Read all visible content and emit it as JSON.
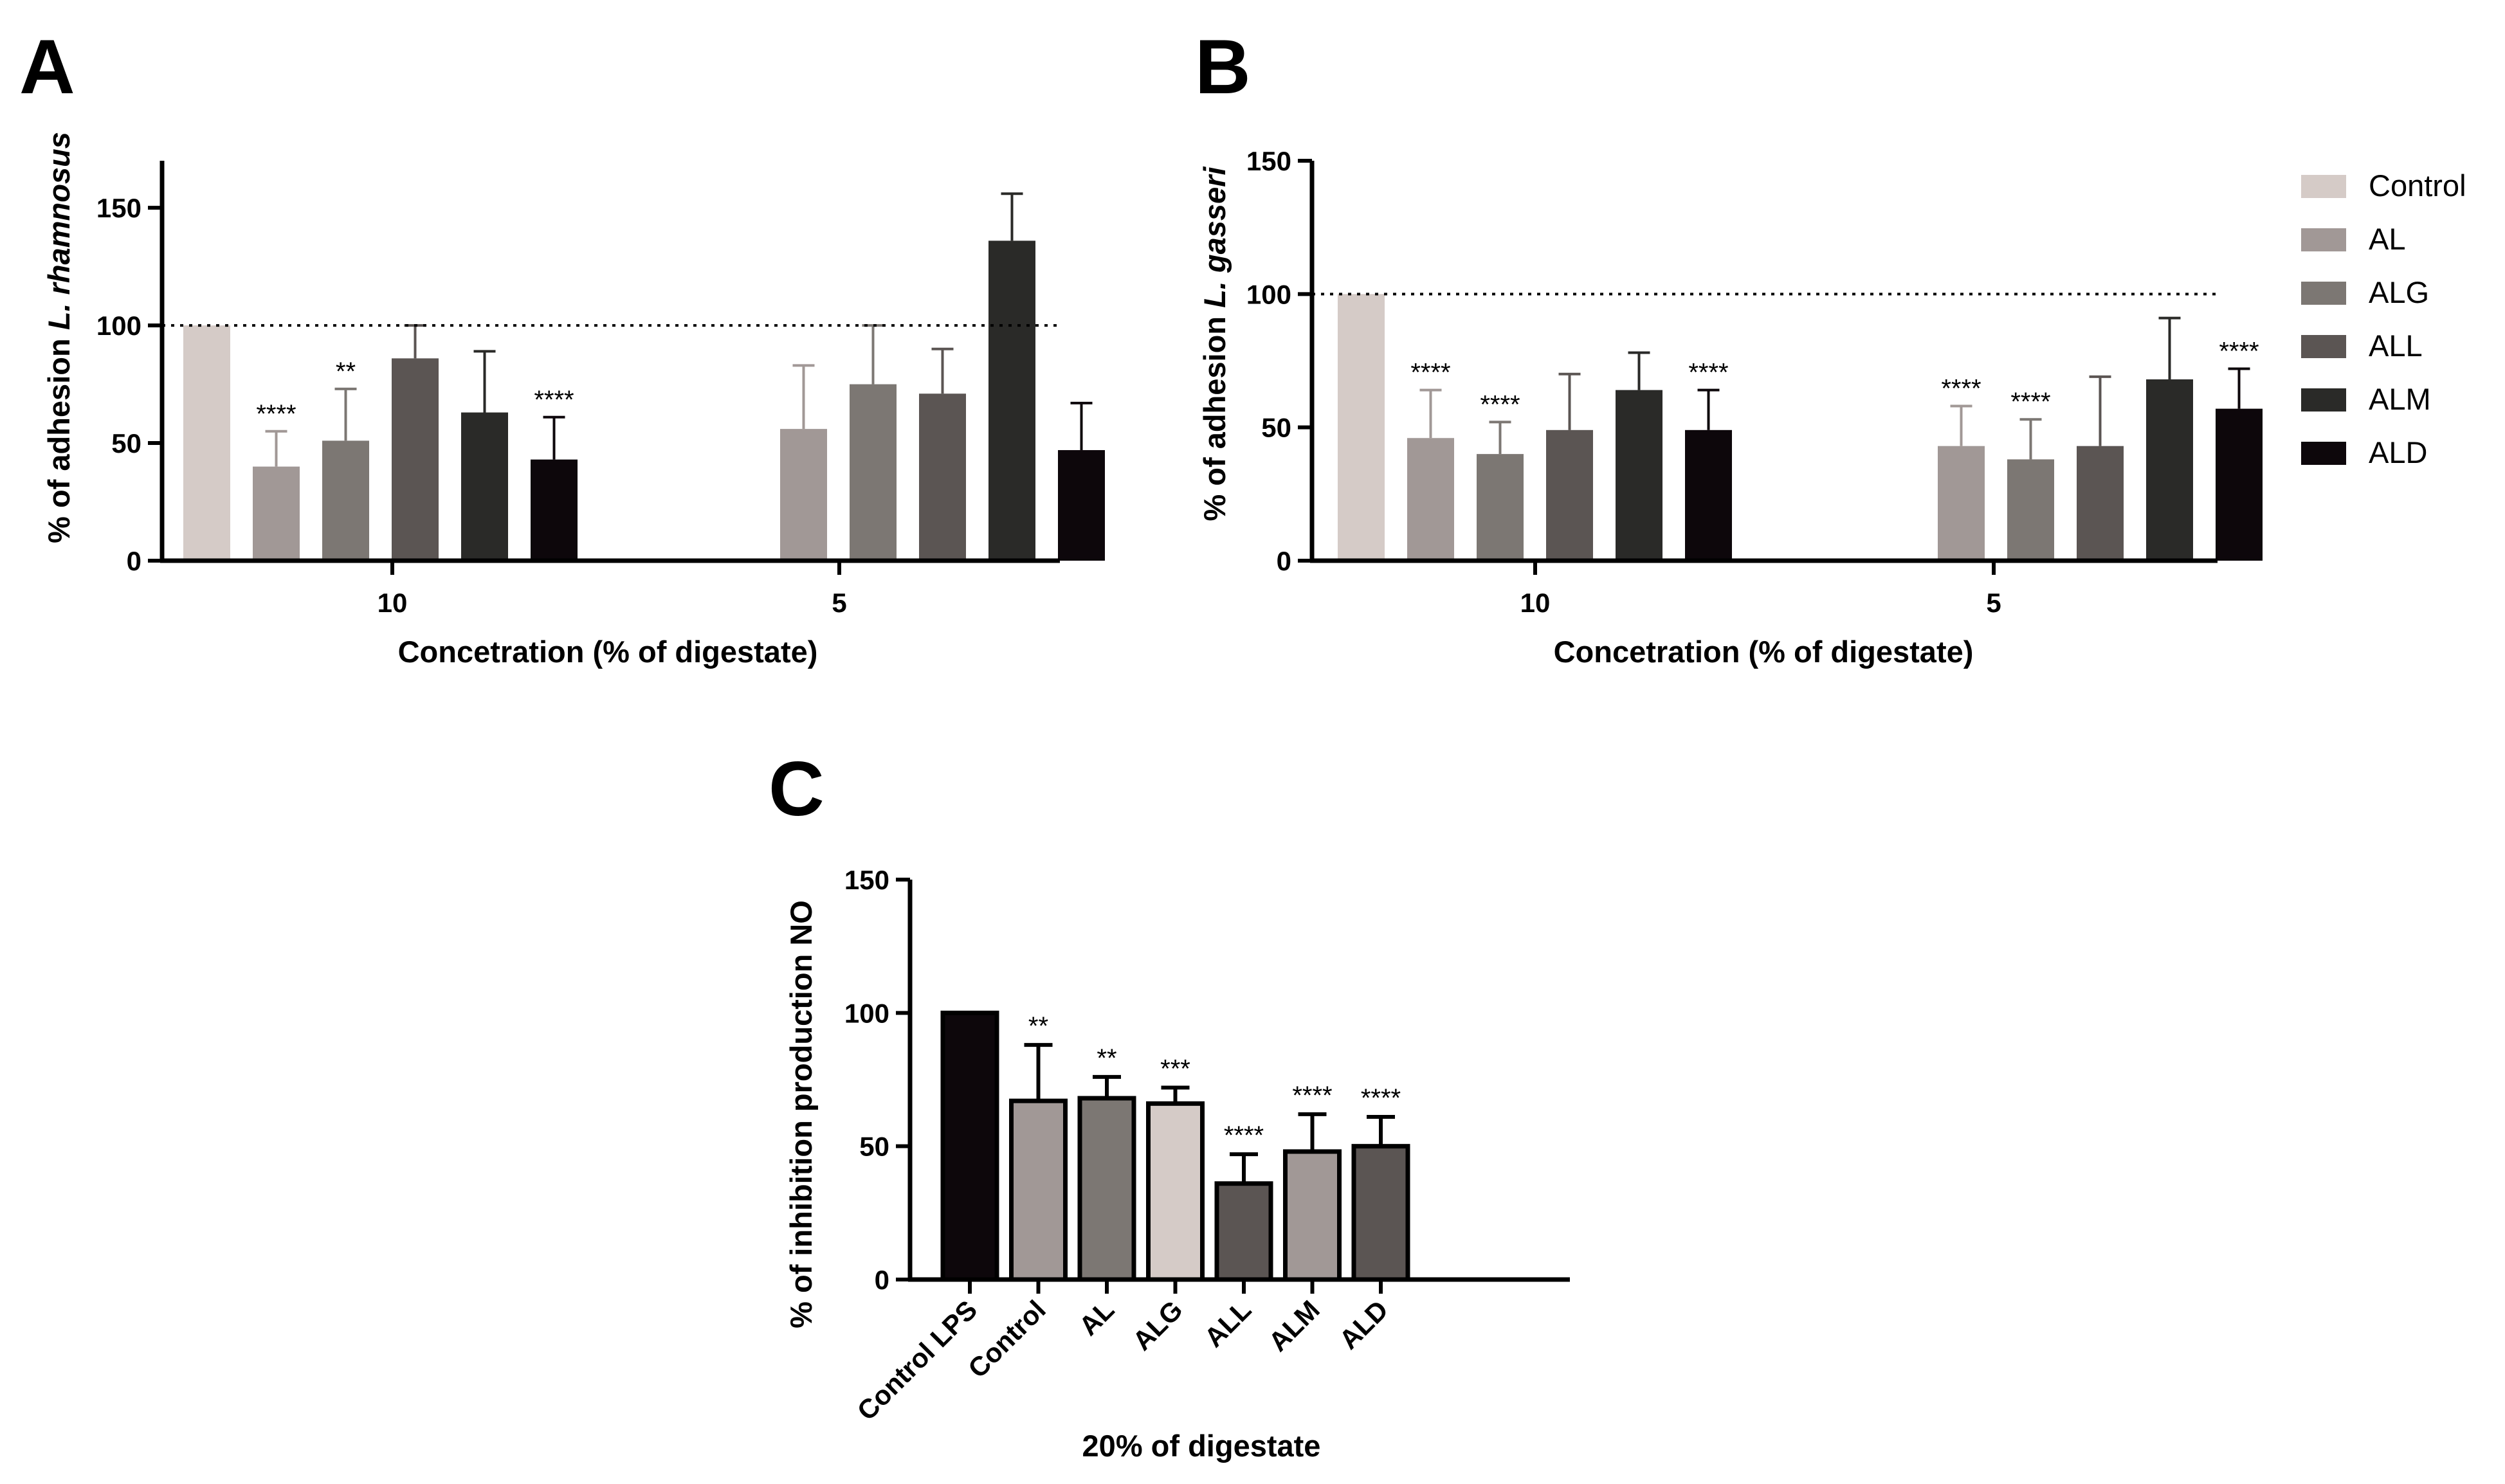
{
  "figure": {
    "panel_letters": [
      "A",
      "B",
      "C"
    ]
  },
  "legend": {
    "entries": [
      {
        "label": "Control",
        "color": "#d5cbc7"
      },
      {
        "label": "AL",
        "color": "#a19896"
      },
      {
        "label": "ALG",
        "color": "#7c7773"
      },
      {
        "label": "ALL",
        "color": "#5b5553"
      },
      {
        "label": "ALM",
        "color": "#2a2a28"
      },
      {
        "label": "ALD",
        "color": "#0d070b"
      }
    ]
  },
  "chart_data": [
    {
      "panel": "A",
      "type": "bar",
      "xlabel": "Concetration (% of digestate)",
      "ylabel_prefix": "% of adhesion ",
      "ylabel_italic": "L. rhamnosus",
      "ylim": [
        0,
        170
      ],
      "yticks": [
        0,
        50,
        100,
        150
      ],
      "reference_line": 100,
      "categories": [
        "10",
        "5"
      ],
      "series": [
        {
          "name": "Control",
          "color": "#d5cbc7",
          "values": [
            100,
            null
          ],
          "errors": [
            0,
            null
          ],
          "sig": [
            "",
            ""
          ]
        },
        {
          "name": "AL",
          "color": "#a19896",
          "values": [
            40,
            56
          ],
          "errors": [
            15,
            27
          ],
          "sig": [
            "****",
            ""
          ]
        },
        {
          "name": "ALG",
          "color": "#7c7773",
          "values": [
            51,
            75
          ],
          "errors": [
            22,
            25
          ],
          "sig": [
            "**",
            ""
          ]
        },
        {
          "name": "ALL",
          "color": "#5b5553",
          "values": [
            86,
            71
          ],
          "errors": [
            14,
            19
          ],
          "sig": [
            "",
            ""
          ]
        },
        {
          "name": "ALM",
          "color": "#2a2a28",
          "values": [
            63,
            136
          ],
          "errors": [
            26,
            20
          ],
          "sig": [
            "",
            ""
          ]
        },
        {
          "name": "ALD",
          "color": "#0d070b",
          "values": [
            43,
            47
          ],
          "errors": [
            18,
            20
          ],
          "sig": [
            "****",
            ""
          ]
        }
      ],
      "grid": false
    },
    {
      "panel": "B",
      "type": "bar",
      "xlabel": "Concetration (% of digestate)",
      "ylabel_prefix": "% of adhesion ",
      "ylabel_italic": "L. gasseri",
      "ylim": [
        0,
        150
      ],
      "yticks": [
        0,
        50,
        100,
        150
      ],
      "reference_line": 100,
      "categories": [
        "10",
        "5"
      ],
      "series": [
        {
          "name": "Control",
          "color": "#d5cbc7",
          "values": [
            100,
            null
          ],
          "errors": [
            0,
            null
          ],
          "sig": [
            "",
            ""
          ]
        },
        {
          "name": "AL",
          "color": "#a19896",
          "values": [
            46,
            43
          ],
          "errors": [
            18,
            15
          ],
          "sig": [
            "****",
            "****"
          ]
        },
        {
          "name": "ALG",
          "color": "#7c7773",
          "values": [
            40,
            38
          ],
          "errors": [
            12,
            15
          ],
          "sig": [
            "****",
            "****"
          ]
        },
        {
          "name": "ALL",
          "color": "#5b5553",
          "values": [
            49,
            43
          ],
          "errors": [
            21,
            26
          ],
          "sig": [
            "",
            ""
          ]
        },
        {
          "name": "ALM",
          "color": "#2a2a28",
          "values": [
            64,
            68
          ],
          "errors": [
            14,
            23
          ],
          "sig": [
            "",
            ""
          ]
        },
        {
          "name": "ALD",
          "color": "#0d070b",
          "values": [
            49,
            57
          ],
          "errors": [
            15,
            15
          ],
          "sig": [
            "****",
            "****"
          ]
        }
      ],
      "grid": false
    },
    {
      "panel": "C",
      "type": "bar",
      "xlabel": "20% of digestate",
      "ylabel": "% of inhibition production NO",
      "ylim": [
        0,
        150
      ],
      "yticks": [
        0,
        50,
        100,
        150
      ],
      "categories": [
        "Control LPS",
        "Control",
        "AL",
        "ALG",
        "ALL",
        "ALM",
        "ALD"
      ],
      "colors": [
        "#0d070b",
        "#a19896",
        "#7c7773",
        "#d5cbc7",
        "#5b5553",
        "#a19896",
        "#5b5553"
      ],
      "values": [
        100,
        67,
        68,
        66,
        36,
        48,
        50
      ],
      "errors": [
        0,
        21,
        8,
        6,
        11,
        14,
        11
      ],
      "sig": [
        "",
        "**",
        "**",
        "***",
        "****",
        "****",
        "****"
      ],
      "grid": false
    }
  ]
}
